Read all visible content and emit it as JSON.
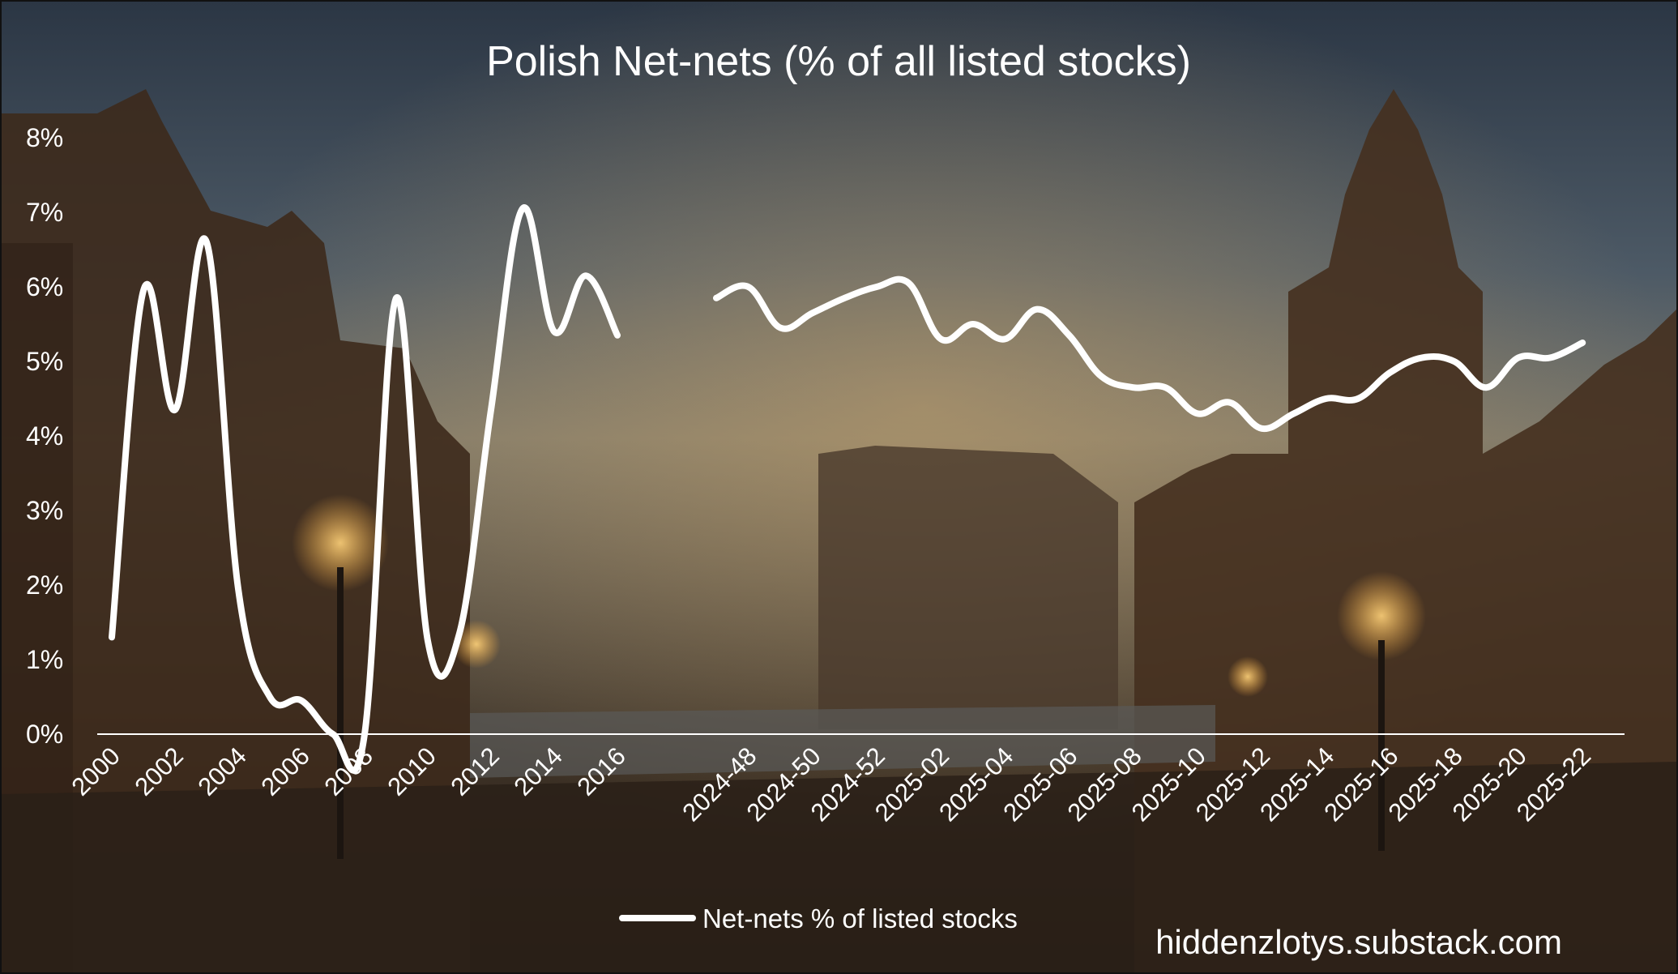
{
  "chart_data": {
    "type": "line",
    "title": "Polish Net-nets (% of all listed stocks)",
    "ylim": [
      0,
      8
    ],
    "yticks": [
      "0%",
      "1%",
      "2%",
      "3%",
      "4%",
      "5%",
      "6%",
      "7%",
      "8%"
    ],
    "grid": false,
    "legend_placement": "bottom-center",
    "series": [
      {
        "name": "Net-nets % of listed stocks",
        "color": "#ffffff"
      }
    ],
    "x_labels": [
      "2000",
      "2002",
      "2004",
      "2006",
      "2008",
      "2010",
      "2012",
      "2014",
      "2016",
      "2024-48",
      "2024-50",
      "2024-52",
      "2025-02",
      "2025-04",
      "2025-06",
      "2025-08",
      "2025-10",
      "2025-12",
      "2025-14",
      "2025-16",
      "2025-18",
      "2025-20",
      "2025-22"
    ],
    "segment1": {
      "x": [
        "2000",
        "2001",
        "2002",
        "2003",
        "2004",
        "2005",
        "2006",
        "2007",
        "2008",
        "2009",
        "2010",
        "2011",
        "2012",
        "2013",
        "2014",
        "2015",
        "2016"
      ],
      "y": [
        1.3,
        5.95,
        4.35,
        6.6,
        1.95,
        0.5,
        0.45,
        0.0,
        0.0,
        5.85,
        1.25,
        1.35,
        4.35,
        7.05,
        5.4,
        6.15,
        5.35
      ]
    },
    "segment2": {
      "x": [
        "2024-47",
        "2024-48",
        "2024-49",
        "2024-50",
        "2024-51",
        "2024-52",
        "2025-01",
        "2025-02",
        "2025-03",
        "2025-04",
        "2025-05",
        "2025-06",
        "2025-07",
        "2025-08",
        "2025-09",
        "2025-10",
        "2025-11",
        "2025-12",
        "2025-13",
        "2025-14",
        "2025-15",
        "2025-16",
        "2025-17",
        "2025-18",
        "2025-19",
        "2025-20",
        "2025-21",
        "2025-22"
      ],
      "y": [
        5.85,
        6.0,
        5.45,
        5.65,
        5.85,
        6.0,
        6.05,
        5.3,
        5.5,
        5.3,
        5.7,
        5.35,
        4.8,
        4.65,
        4.65,
        4.3,
        4.45,
        4.1,
        4.3,
        4.5,
        4.5,
        4.85,
        5.05,
        5.0,
        4.65,
        5.05,
        5.05,
        5.25
      ]
    }
  },
  "watermark": "hiddenzlotys.substack.com",
  "colors": {
    "line": "#ffffff",
    "text": "#ffffff",
    "axis": "#ffffff"
  }
}
